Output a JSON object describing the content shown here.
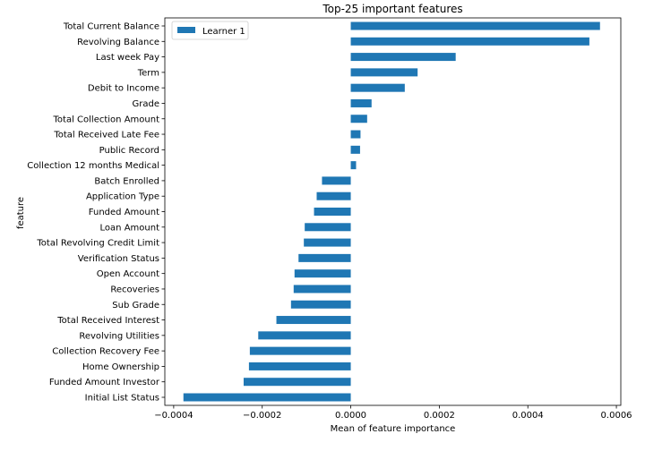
{
  "chart_data": {
    "type": "bar",
    "orientation": "horizontal",
    "title": "Top-25 important features",
    "xlabel": "Mean of feature importance",
    "ylabel": "feature",
    "xlim": [
      -0.00042,
      0.00061
    ],
    "xticks": [
      -0.0004,
      -0.0002,
      0.0,
      0.0002,
      0.0004,
      0.0006
    ],
    "xtick_labels": [
      "−0.0004",
      "−0.0002",
      "0.0000",
      "0.0002",
      "0.0004",
      "0.0006"
    ],
    "grid": false,
    "legend_position": "top-left",
    "bar_color": "#1f77b4",
    "categories": [
      "Total Current Balance",
      "Revolving Balance",
      "Last week Pay",
      "Term",
      "Debit to Income",
      "Grade",
      "Total Collection Amount",
      "Total Received Late Fee",
      "Public Record",
      "Collection 12 months Medical",
      "Batch Enrolled",
      "Application Type",
      "Funded Amount",
      "Loan Amount",
      "Total Revolving Credit Limit",
      "Verification Status",
      "Open Account",
      "Recoveries",
      "Sub Grade",
      "Total Received Interest",
      "Revolving Utilities",
      "Collection Recovery Fee",
      "Home Ownership",
      "Funded Amount Investor",
      "Initial List Status"
    ],
    "series": [
      {
        "name": "Learner 1",
        "values": [
          0.000563,
          0.000539,
          0.000237,
          0.000151,
          0.000122,
          4.7e-05,
          3.7e-05,
          2.2e-05,
          2.1e-05,
          1.2e-05,
          -6.5e-05,
          -7.7e-05,
          -8.3e-05,
          -0.000104,
          -0.000106,
          -0.000118,
          -0.000127,
          -0.000129,
          -0.000135,
          -0.000168,
          -0.000209,
          -0.000228,
          -0.00023,
          -0.000242,
          -0.000378
        ]
      }
    ]
  }
}
